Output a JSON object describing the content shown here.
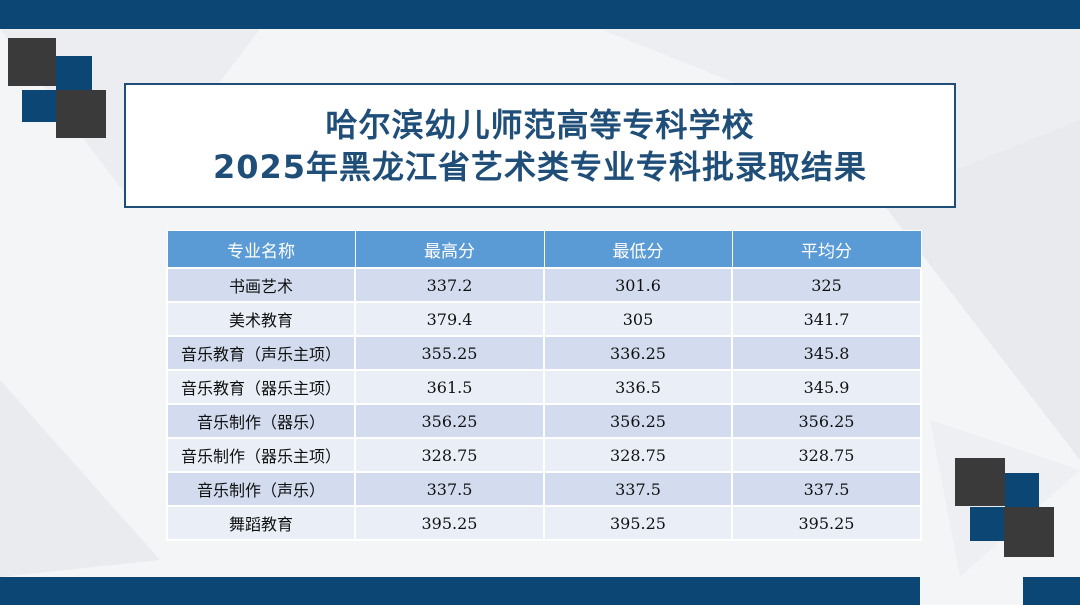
{
  "title": {
    "line1": "哈尔滨幼儿师范高等专科学校",
    "line2": "2025年黑龙江省艺术类专业专科批录取结果"
  },
  "table": {
    "headers": [
      "专业名称",
      "最高分",
      "最低分",
      "平均分"
    ],
    "rows": [
      [
        "书画艺术",
        "337.2",
        "301.6",
        "325"
      ],
      [
        "美术教育",
        "379.4",
        "305",
        "341.7"
      ],
      [
        "音乐教育（声乐主项）",
        "355.25",
        "336.25",
        "345.8"
      ],
      [
        "音乐教育（器乐主项）",
        "361.5",
        "336.5",
        "345.9"
      ],
      [
        "音乐制作（器乐）",
        "356.25",
        "356.25",
        "356.25"
      ],
      [
        "音乐制作（器乐主项）",
        "328.75",
        "328.75",
        "328.75"
      ],
      [
        "音乐制作（声乐）",
        "337.5",
        "337.5",
        "337.5"
      ],
      [
        "舞蹈教育",
        "395.25",
        "395.25",
        "395.25"
      ]
    ]
  },
  "colors": {
    "brand_navy": "#0c4674",
    "title_text": "#1f4e79",
    "header_fill": "#5b9bd5",
    "row_fill_a": "#d3dcee",
    "row_fill_b": "#eaeff7",
    "accent_dark": "#3a3a3a"
  }
}
